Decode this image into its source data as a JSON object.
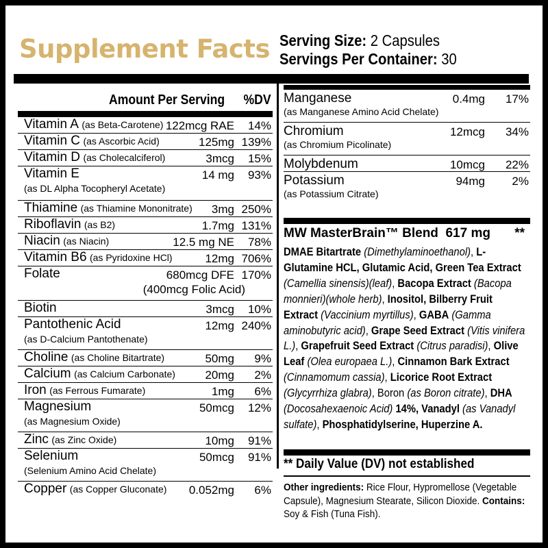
{
  "header": {
    "title": "Supplement Facts",
    "serving_size_label": "Serving Size:",
    "serving_size_value": "2 Capsules",
    "servings_per_container_label": "Servings Per Container:",
    "servings_per_container_value": "30"
  },
  "table_header": {
    "amount": "Amount Per Serving",
    "dv": "%DV"
  },
  "left_rows": [
    {
      "name": "Vitamin A",
      "sub": "(as Beta-Carotene)",
      "amount": "122mcg RAE",
      "dv": "14%"
    },
    {
      "name": "Vitamin C",
      "sub": "(as Ascorbic Acid)",
      "amount": "125mg",
      "dv": "139%"
    },
    {
      "name": "Vitamin D",
      "sub": "(as Cholecalciferol)",
      "amount": "3mcg",
      "dv": "15%"
    },
    {
      "name": "Vitamin E",
      "sub": "(as DL Alpha Tocopheryl Acetate)",
      "amount": "14 mg",
      "dv": "93%"
    },
    {
      "name": "Thiamine",
      "sub": "(as Thiamine Mononitrate)",
      "amount": "3mg",
      "dv": "250%"
    },
    {
      "name": "Riboflavin",
      "sub": "(as B2)",
      "amount": "1.7mg",
      "dv": "131%"
    },
    {
      "name": "Niacin",
      "sub": "(as Niacin)",
      "amount": "12.5 mg NE",
      "dv": "78%"
    },
    {
      "name": "Vitamin B6",
      "sub": "(as Pyridoxine HCl)",
      "amount": "12mg",
      "dv": "706%"
    },
    {
      "name": "Folate",
      "sub": "(400mcg Folic Acid)",
      "amount": "680mcg DFE",
      "dv": "170%"
    },
    {
      "name": "Biotin",
      "sub": "",
      "amount": "3mcg",
      "dv": "10%"
    },
    {
      "name": "Pantothenic Acid",
      "sub": "(as D-Calcium Pantothenate)",
      "amount": "12mg",
      "dv": "240%"
    },
    {
      "name": "Choline",
      "sub": "(as Choline Bitartrate)",
      "amount": "50mg",
      "dv": "9%"
    },
    {
      "name": "Calcium",
      "sub": "(as Calcium Carbonate)",
      "amount": "20mg",
      "dv": "2%"
    },
    {
      "name": "Iron",
      "sub": "(as Ferrous Fumarate)",
      "amount": "1mg",
      "dv": "6%"
    },
    {
      "name": "Magnesium",
      "sub": "(as Magnesium Oxide)",
      "amount": "50mcg",
      "dv": "12%"
    },
    {
      "name": "Zinc",
      "sub": "(as Zinc Oxide)",
      "amount": "10mg",
      "dv": "91%"
    },
    {
      "name": "Selenium",
      "sub": "(Selenium Amino Acid Chelate)",
      "amount": "50mcg",
      "dv": "91%"
    },
    {
      "name": "Copper",
      "sub": "(as Copper Gluconate)",
      "amount": "0.052mg",
      "dv": "6%"
    }
  ],
  "right_rows": [
    {
      "name": "Manganese",
      "sub": "(as Manganese Amino Acid Chelate)",
      "amount": "0.4mg",
      "dv": "17%"
    },
    {
      "name": "Chromium",
      "sub": "(as Chromium Picolinate)",
      "amount": "12mcg",
      "dv": "34%"
    },
    {
      "name": "Molybdenum",
      "sub": "",
      "amount": "10mcg",
      "dv": "22%"
    },
    {
      "name": "Potassium",
      "sub": "(as Potassium Citrate)",
      "amount": "94mg",
      "dv": "2%"
    }
  ],
  "blend": {
    "name": "MW MasterBrain™ Blend",
    "amount": "617 mg",
    "dv": "**",
    "ingredients": [
      {
        "b": "DMAE Bitartrate",
        "i": "(Dimethylaminoethanol)",
        "t": ", "
      },
      {
        "b": "L-Glutamine HCL, Glutamic Acid, Green Tea Extract",
        "i": "(Camellia sinensis)(leaf)",
        "t": ", "
      },
      {
        "b": "Bacopa Extract",
        "i": "(Bacopa monnieri)(whole herb)",
        "t": ", "
      },
      {
        "b": "Inositol, Bilberry Fruit Extract",
        "i": "(Vaccinium myrtillus)",
        "t": ", "
      },
      {
        "b": "GABA",
        "i": "(Gamma aminobutyric acid)",
        "t": ", "
      },
      {
        "b": "Grape Seed Extract",
        "i": "(Vitis vinifera L.)",
        "t": ", "
      },
      {
        "b": "Grapefruit Seed Extract",
        "i": "(Citrus paradisi)",
        "t": ", "
      },
      {
        "b": "Olive Leaf",
        "i": "(Olea europaea L.)",
        "t": ", "
      },
      {
        "b": "Cinnamon Bark Extract",
        "i": "(Cinnamomum cassia)",
        "t": ", "
      },
      {
        "b": "Licorice Root Extract",
        "i": "(Glycyrrhiza glabra)",
        "t": ", Boron "
      },
      {
        "b": "",
        "i": "(as Boron citrate)",
        "t": ", "
      },
      {
        "b": "DHA",
        "i": "(Docosahexaenoic Acid)",
        "t": " "
      },
      {
        "b": "14%, Vanadyl",
        "i": "(as Vanadyl sulfate)",
        "t": ", "
      },
      {
        "b": "Phosphatidylserine, Huperzine A.",
        "i": "",
        "t": ""
      }
    ]
  },
  "dv_note": "** Daily Value (DV) not established",
  "other": {
    "label": "Other ingredients:",
    "text": " Rice Flour, Hypromellose (Vegetable Capsule), Magnesium Stearate, Silicon Dioxide. ",
    "contains_label": "Contains:",
    "contains_text": " Soy & Fish (Tuna Fish)."
  },
  "colors": {
    "title": "#d6b46e",
    "frame": "#000000",
    "background": "#ffffff"
  }
}
